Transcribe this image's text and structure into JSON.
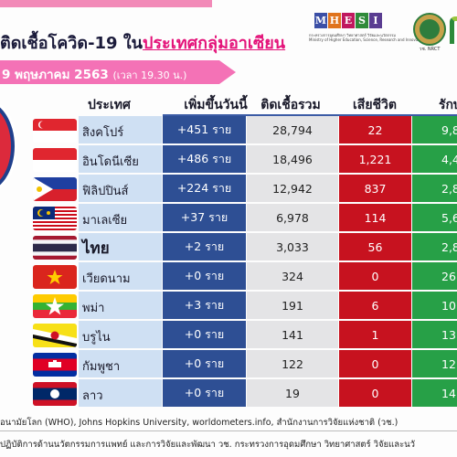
{
  "title": {
    "prefix": "ติดเชื้อโควิด-19 ใน",
    "highlight": "ประเทศกลุ่มอาเซียน"
  },
  "date": {
    "main": "9 พฤษภาคม 2563",
    "time": "(เวลา 19.30 น.)"
  },
  "logos": {
    "mhesi": [
      "M",
      "H",
      "E",
      "S",
      "I"
    ],
    "mhesi_colors": [
      "#3b4fa6",
      "#e0731c",
      "#c0185e",
      "#2f8a3a",
      "#5a3d91"
    ],
    "mhesi_sub": "กระทรวงการอุดมศึกษา วิทยาศาสตร์ วิจัยและนวัตกรรม",
    "mhesi_sub_en": "Ministry of Higher Education, Science, Research and Innovation",
    "nrct": "วช. NRCT"
  },
  "headers": {
    "country": "ประเทศ",
    "new_today": "เพิ่มขึ้นวันนี้",
    "total": "ติดเชื้อรวม",
    "deaths": "เสียชีวิต",
    "recovered": "รักษา"
  },
  "rows": [
    {
      "flag": "singapore-flag",
      "country": "สิงคโปร์",
      "new": "+451 ราย",
      "total": "28,794",
      "deaths": "22",
      "recovered": "9,8"
    },
    {
      "flag": "indonesia-flag",
      "country": "อินโดนีเซีย",
      "new": "+486 ราย",
      "total": "18,496",
      "deaths": "1,221",
      "recovered": "4,4"
    },
    {
      "flag": "philippines-flag",
      "country": "ฟิลิปปินส์",
      "new": "+224 ราย",
      "total": "12,942",
      "deaths": "837",
      "recovered": "2,8"
    },
    {
      "flag": "malaysia-flag",
      "country": "มาเลเซีย",
      "new": "+37 ราย",
      "total": "6,978",
      "deaths": "114",
      "recovered": "5,6"
    },
    {
      "flag": "thailand-flag",
      "country": "ไทย",
      "new": "+2 ราย",
      "total": "3,033",
      "deaths": "56",
      "recovered": "2,8"
    },
    {
      "flag": "vietnam-flag",
      "country": "เวียดนาม",
      "new": "+0 ราย",
      "total": "324",
      "deaths": "0",
      "recovered": "26"
    },
    {
      "flag": "myanmar-flag",
      "country": "พม่า",
      "new": "+3 ราย",
      "total": "191",
      "deaths": "6",
      "recovered": "10"
    },
    {
      "flag": "brunei-flag",
      "country": "บรูไน",
      "new": "+0 ราย",
      "total": "141",
      "deaths": "1",
      "recovered": "13"
    },
    {
      "flag": "cambodia-flag",
      "country": "กัมพูชา",
      "new": "+0 ราย",
      "total": "122",
      "deaths": "0",
      "recovered": "12"
    },
    {
      "flag": "laos-flag",
      "country": "ลาว",
      "new": "+0 ราย",
      "total": "19",
      "deaths": "0",
      "recovered": "14"
    }
  ],
  "footer": {
    "sources": "อนามัยโลก (WHO), Johns Hopkins University, worldometers.info, สำนักงานการวิจัยแห่งชาติ (วช.)",
    "credit": "ปฏิบัติการด้านนวัตกรรมการแพทย์ และการวิจัยและพัฒนา  วช.  กระทรวงการอุดมศึกษา วิทยาศาสตร์ วิจัยและนวั"
  },
  "colors": {
    "pink": "#f472b6",
    "new_col": "#2e4f94",
    "total_col": "#e4e4e6",
    "death_col": "#c7121f",
    "recov_col": "#27a047"
  }
}
